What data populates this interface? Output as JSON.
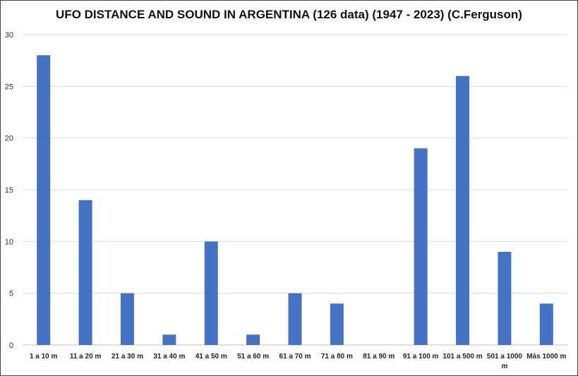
{
  "chart_data": {
    "type": "bar",
    "title": "UFO DISTANCE AND SOUND IN ARGENTINA (126 data) (1947 - 2023) (C.Ferguson)",
    "xlabel": "",
    "ylabel": "",
    "categories": [
      "1 a 10 m",
      "11 a 20 m",
      "21 a 30 m",
      "31 a 40 m",
      "41 a 50 m",
      "51 a 60 m",
      "61 a 70 m",
      "71 a 80 m",
      "81 a 90 m",
      "91 a 100 m",
      "101 a 500 m",
      "501 a 1000 m",
      "Más 1000 m"
    ],
    "values": [
      28,
      14,
      5,
      1,
      10,
      1,
      5,
      4,
      0,
      19,
      26,
      9,
      4
    ],
    "ylim": [
      0,
      30
    ],
    "yticks": [
      0,
      5,
      10,
      15,
      20,
      25,
      30
    ],
    "grid": true,
    "legend": "none",
    "bar_color": "#4472c4",
    "grid_color": "#d9d9d9"
  }
}
